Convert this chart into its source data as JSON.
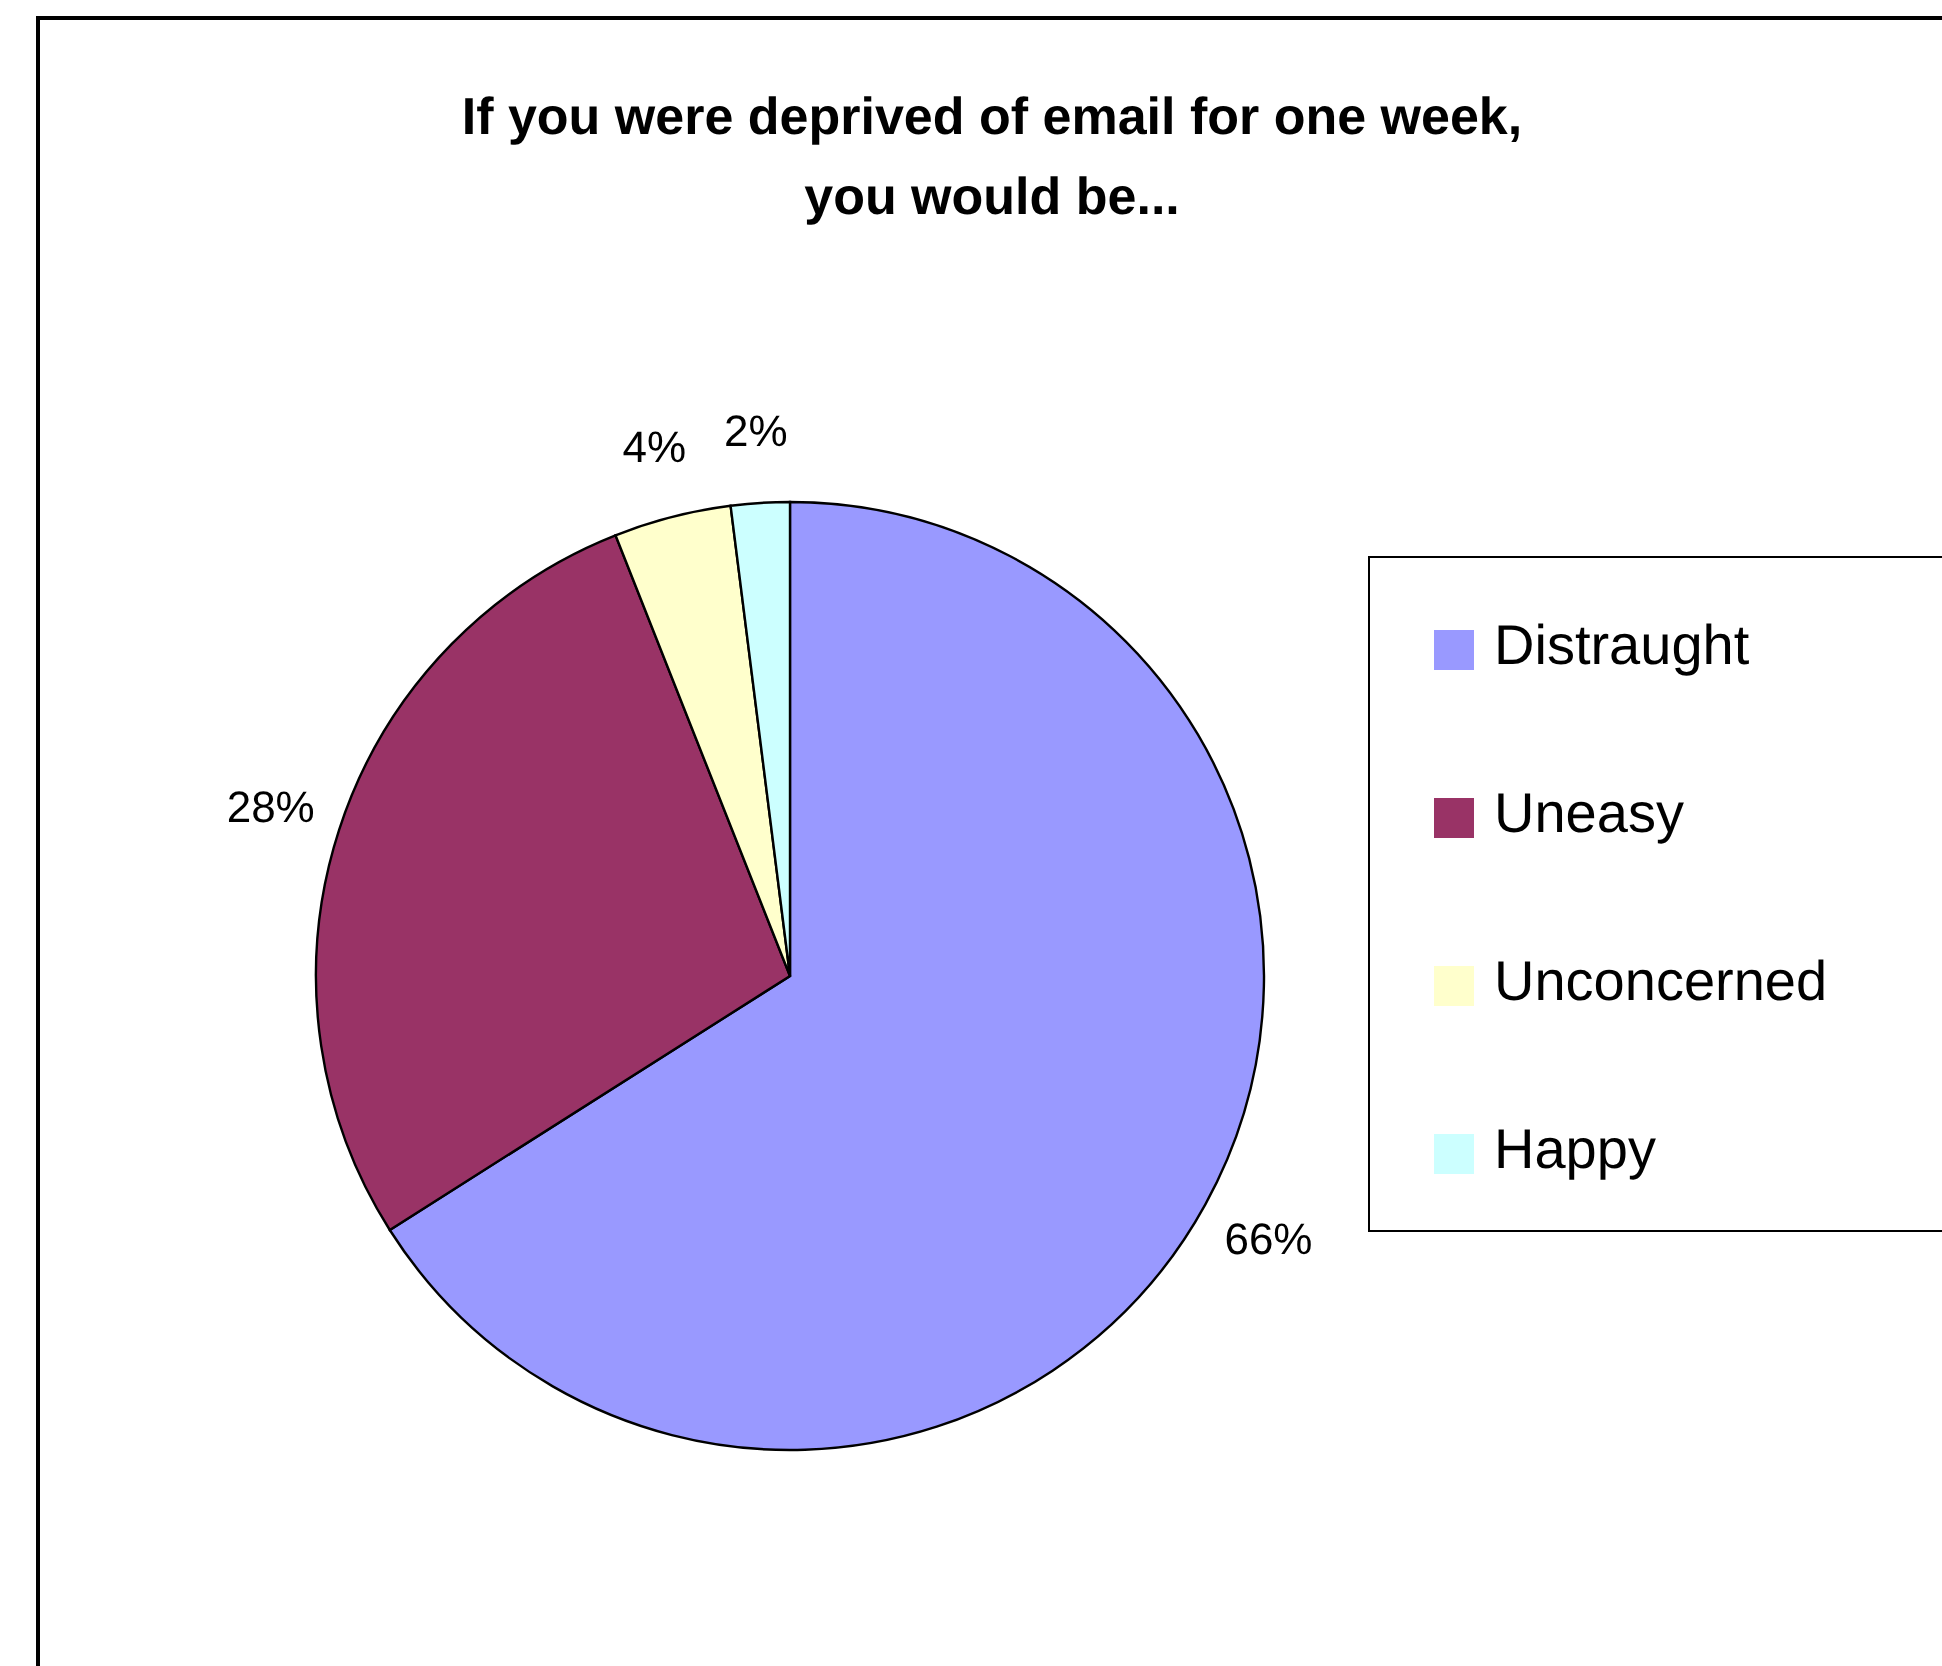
{
  "chart_data": {
    "type": "pie",
    "title": "If you were deprived of email for one week, you would be...",
    "categories": [
      "Distraught",
      "Uneasy",
      "Unconcerned",
      "Happy"
    ],
    "values": [
      66,
      28,
      4,
      2
    ],
    "colors": [
      "#9999ff",
      "#993366",
      "#ffffcc",
      "#ccffff"
    ],
    "value_labels": [
      "66%",
      "28%",
      "4%",
      "2%"
    ],
    "legend": "right"
  }
}
